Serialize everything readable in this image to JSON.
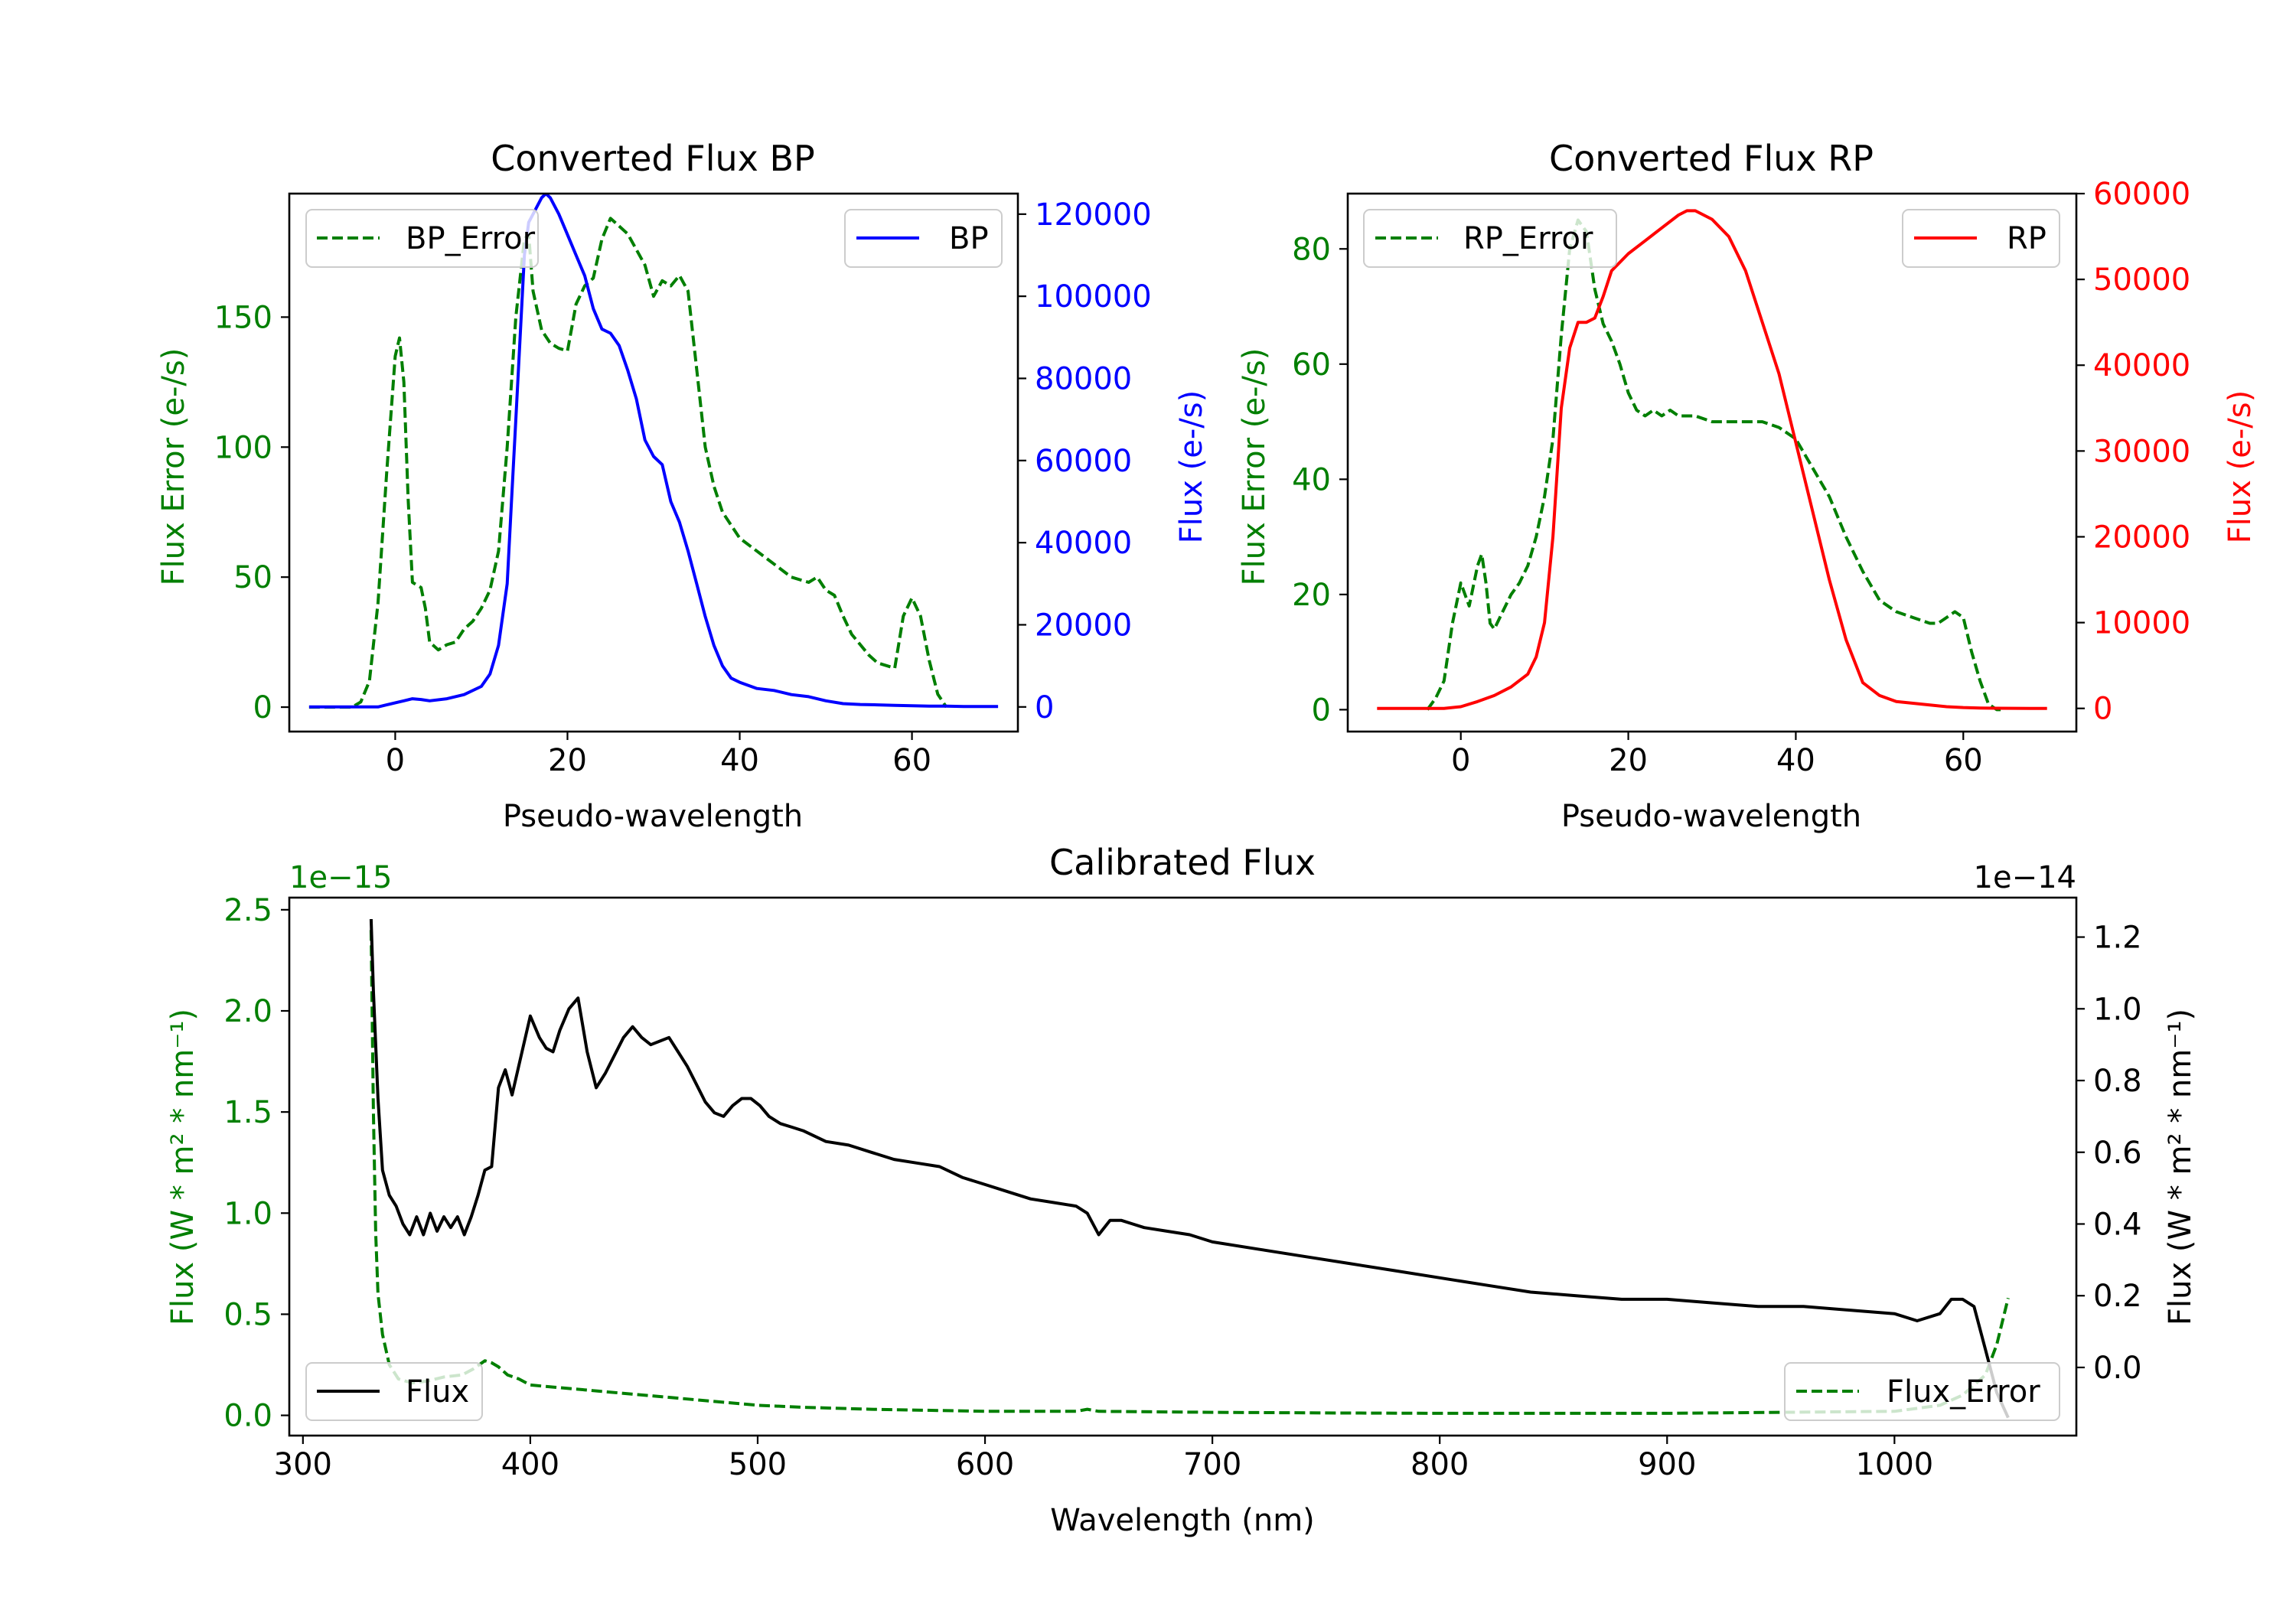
{
  "colors": {
    "green": "#007f00",
    "blue": "#0000ff",
    "red": "#ff0000",
    "black": "#000000"
  },
  "chart_data": [
    {
      "id": "bp",
      "type": "line",
      "title": "Converted Flux BP",
      "xlabel": "Pseudo-wavelength",
      "xlim": [
        -12.3,
        72.3
      ],
      "xticks": [
        0,
        20,
        40,
        60
      ],
      "xtick_labels": [
        "0",
        "20",
        "40",
        "60"
      ],
      "left_axis": {
        "label": "Flux Error (e-/s)",
        "color": "#007f00",
        "ylim": [
          -9.4,
          197.5
        ],
        "ticks": [
          0,
          50,
          100,
          150
        ],
        "tick_labels": [
          "0",
          "50",
          "100",
          "150"
        ]
      },
      "right_axis": {
        "label": "Flux (e-/s)",
        "color": "#0000ff",
        "ylim": [
          -6000,
          125000
        ],
        "ticks": [
          0,
          20000,
          40000,
          60000,
          80000,
          100000,
          120000
        ],
        "tick_labels": [
          "0",
          "20000",
          "40000",
          "60000",
          "80000",
          "100000",
          "120000"
        ]
      },
      "legend_left": {
        "label": "BP_Error",
        "position": "upper left"
      },
      "legend_right": {
        "label": "BP",
        "position": "upper right"
      },
      "series": [
        {
          "name": "BP_Error",
          "axis": "left",
          "style": "dashed",
          "color": "#007f00",
          "x": [
            -10,
            -5,
            -4,
            -3,
            -2,
            -1,
            0,
            0.5,
            1,
            1.5,
            2,
            3,
            3.5,
            4,
            5,
            6,
            7,
            8,
            9,
            10,
            11,
            12,
            13,
            14,
            15,
            15.5,
            16,
            17,
            18,
            19,
            20,
            21,
            22,
            23,
            24,
            25,
            26,
            27,
            28,
            29,
            30,
            31,
            32,
            33,
            34,
            35,
            36,
            37,
            38,
            40,
            42,
            44,
            46,
            48,
            49,
            50,
            51,
            52,
            53,
            54,
            55,
            56,
            57,
            58,
            59,
            60,
            61,
            62,
            63,
            64
          ],
          "y": [
            0,
            0,
            2,
            10,
            40,
            90,
            135,
            142,
            125,
            80,
            48,
            46,
            38,
            25,
            22,
            24,
            25,
            30,
            33,
            38,
            45,
            60,
            100,
            150,
            180,
            182,
            160,
            145,
            140,
            138,
            137,
            155,
            162,
            165,
            180,
            188,
            185,
            182,
            176,
            170,
            158,
            164,
            162,
            166,
            160,
            130,
            100,
            85,
            75,
            65,
            60,
            55,
            50,
            48,
            50,
            45,
            43,
            35,
            28,
            24,
            20,
            17,
            16,
            15,
            35,
            42,
            35,
            18,
            5,
            0
          ]
        },
        {
          "name": "BP",
          "axis": "right",
          "style": "solid",
          "color": "#0000ff",
          "x": [
            -10,
            -2,
            -1,
            0,
            1,
            2,
            3,
            4,
            6,
            8,
            10,
            11,
            12,
            13,
            13.5,
            14,
            14.5,
            15,
            15.5,
            16,
            17,
            17.5,
            18,
            19,
            20,
            21,
            22,
            23,
            24,
            25,
            26,
            27,
            28,
            29,
            30,
            31,
            32,
            33,
            34,
            35,
            36,
            37,
            38,
            39,
            40,
            42,
            44,
            46,
            48,
            50,
            52,
            54,
            56,
            58,
            60,
            62,
            64,
            66,
            68,
            70
          ],
          "y": [
            0,
            0,
            500,
            1000,
            1500,
            2000,
            1800,
            1500,
            2000,
            3000,
            5000,
            8000,
            15000,
            30000,
            50000,
            70000,
            90000,
            110000,
            118000,
            120000,
            124000,
            125000,
            124000,
            120000,
            115000,
            110000,
            105000,
            97000,
            92000,
            91000,
            88000,
            82000,
            75000,
            65000,
            61000,
            59000,
            50000,
            45000,
            38000,
            30000,
            22000,
            15000,
            10000,
            7000,
            6000,
            4500,
            4000,
            3000,
            2500,
            1500,
            800,
            600,
            500,
            400,
            300,
            200,
            200,
            100,
            100,
            100
          ]
        }
      ]
    },
    {
      "id": "rp",
      "type": "line",
      "title": "Converted Flux RP",
      "xlabel": "Pseudo-wavelength",
      "xlim": [
        -13.5,
        73.5
      ],
      "xticks": [
        0,
        20,
        40,
        60
      ],
      "xtick_labels": [
        "0",
        "20",
        "40",
        "60"
      ],
      "left_axis": {
        "label": "Flux Error (e-/s)",
        "color": "#007f00",
        "ylim": [
          -3.8,
          89.6
        ],
        "ticks": [
          0,
          20,
          40,
          60,
          80
        ],
        "tick_labels": [
          "0",
          "20",
          "40",
          "60",
          "80"
        ]
      },
      "right_axis": {
        "label": "Flux (e-/s)",
        "color": "#ff0000",
        "ylim": [
          -2700,
          60000
        ],
        "ticks": [
          0,
          10000,
          20000,
          30000,
          40000,
          50000,
          60000
        ],
        "tick_labels": [
          "0",
          "10000",
          "20000",
          "30000",
          "40000",
          "50000",
          "60000"
        ]
      },
      "legend_left": {
        "label": "RP_Error",
        "position": "upper left"
      },
      "legend_right": {
        "label": "RP",
        "position": "upper right"
      },
      "series": [
        {
          "name": "RP_Error",
          "axis": "left",
          "style": "dashed",
          "color": "#007f00",
          "x": [
            -4,
            -3,
            -2,
            -1,
            0,
            1,
            2,
            2.5,
            3,
            3.5,
            4,
            5,
            6,
            7,
            8,
            9,
            10,
            11,
            12,
            13,
            14,
            15,
            16,
            17,
            18,
            19,
            20,
            21,
            22,
            23,
            24,
            25,
            26,
            28,
            30,
            32,
            34,
            36,
            38,
            40,
            42,
            44,
            46,
            48,
            50,
            52,
            54,
            56,
            57,
            58,
            59,
            60,
            61,
            62,
            63,
            64,
            65
          ],
          "y": [
            0,
            2,
            5,
            15,
            22,
            18,
            25,
            27,
            22,
            15,
            14,
            17,
            20,
            22,
            25,
            30,
            37,
            47,
            65,
            80,
            85,
            83,
            73,
            67,
            64,
            60,
            55,
            52,
            51,
            52,
            51,
            52,
            51,
            51,
            50,
            50,
            50,
            50,
            49,
            47,
            42,
            37,
            30,
            24,
            19,
            17,
            16,
            15,
            15,
            16,
            17,
            16,
            10,
            5,
            1,
            0,
            0
          ]
        },
        {
          "name": "RP",
          "axis": "right",
          "style": "solid",
          "color": "#ff0000",
          "x": [
            -10,
            -2,
            0,
            2,
            4,
            6,
            8,
            9,
            10,
            11,
            12,
            13,
            14,
            15,
            16,
            17,
            18,
            20,
            22,
            24,
            26,
            27,
            28,
            29,
            30,
            32,
            34,
            36,
            38,
            40,
            42,
            44,
            46,
            48,
            50,
            52,
            54,
            56,
            58,
            60,
            62,
            64,
            66,
            68,
            70
          ],
          "y": [
            0,
            0,
            200,
            800,
            1500,
            2500,
            4000,
            6000,
            10000,
            20000,
            35000,
            42000,
            45000,
            45000,
            45500,
            48000,
            51000,
            53000,
            54500,
            56000,
            57500,
            58000,
            58000,
            57500,
            57000,
            55000,
            51000,
            45000,
            39000,
            31000,
            23000,
            15000,
            8000,
            3000,
            1500,
            800,
            600,
            400,
            200,
            100,
            50,
            20,
            10,
            0,
            0
          ]
        }
      ]
    },
    {
      "id": "calibrated",
      "type": "line",
      "title": "Calibrated Flux",
      "xlabel": "Wavelength (nm)",
      "xlim": [
        294,
        1080
      ],
      "xticks": [
        300,
        400,
        500,
        600,
        700,
        800,
        900,
        1000
      ],
      "xtick_labels": [
        "300",
        "400",
        "500",
        "600",
        "700",
        "800",
        "900",
        "1000"
      ],
      "left_axis": {
        "label": "Flux (W * m² * nm⁻¹)",
        "color": "#007f00",
        "offset_text": "1e−15",
        "ylim": [
          -0.1,
          2.56
        ],
        "ticks": [
          0.0,
          0.5,
          1.0,
          1.5,
          2.0,
          2.5
        ],
        "tick_labels": [
          "0.0",
          "0.5",
          "1.0",
          "1.5",
          "2.0",
          "2.5"
        ]
      },
      "right_axis": {
        "label": "Flux (W * m² * nm⁻¹)",
        "color": "#000000",
        "offset_text": "1e−14",
        "ylim": [
          -0.19,
          1.31
        ],
        "ticks": [
          0.0,
          0.2,
          0.4,
          0.6,
          0.8,
          1.0,
          1.2
        ],
        "tick_labels": [
          "0.0",
          "0.2",
          "0.4",
          "0.6",
          "0.8",
          "1.0",
          "1.2"
        ]
      },
      "legend_left": {
        "label": "Flux",
        "position": "lower left"
      },
      "legend_right": {
        "label": "Flux_Error",
        "position": "lower right"
      },
      "series": [
        {
          "name": "Flux_Error",
          "axis": "left",
          "style": "dashed",
          "color": "#007f00",
          "x": [
            330,
            331,
            332,
            333,
            335,
            338,
            342,
            348,
            355,
            362,
            370,
            375,
            380,
            383,
            386,
            390,
            395,
            400,
            410,
            420,
            430,
            440,
            460,
            480,
            500,
            520,
            550,
            600,
            640,
            645,
            650,
            700,
            750,
            800,
            850,
            900,
            950,
            1000,
            1020,
            1030,
            1040,
            1045,
            1050
          ],
          "y": [
            2.4,
            1.5,
            0.9,
            0.6,
            0.4,
            0.25,
            0.18,
            0.16,
            0.17,
            0.19,
            0.2,
            0.23,
            0.27,
            0.26,
            0.24,
            0.2,
            0.18,
            0.15,
            0.14,
            0.13,
            0.12,
            0.11,
            0.09,
            0.07,
            0.05,
            0.04,
            0.03,
            0.02,
            0.02,
            0.03,
            0.02,
            0.015,
            0.012,
            0.01,
            0.01,
            0.01,
            0.015,
            0.02,
            0.05,
            0.1,
            0.2,
            0.35,
            0.58
          ]
        },
        {
          "name": "Flux",
          "axis": "right",
          "style": "solid",
          "color": "#000000",
          "x": [
            330,
            331,
            333,
            335,
            338,
            341,
            344,
            347,
            350,
            353,
            356,
            359,
            362,
            365,
            368,
            371,
            374,
            377,
            380,
            383,
            386,
            389,
            392,
            396,
            400,
            404,
            407,
            410,
            413,
            417,
            421,
            425,
            429,
            433,
            437,
            441,
            445,
            449,
            453,
            457,
            461,
            465,
            469,
            473,
            477,
            481,
            485,
            489,
            493,
            497,
            501,
            505,
            510,
            515,
            520,
            530,
            540,
            550,
            560,
            570,
            580,
            590,
            600,
            610,
            620,
            630,
            640,
            645,
            650,
            655,
            660,
            665,
            670,
            680,
            690,
            700,
            720,
            740,
            760,
            780,
            800,
            820,
            840,
            860,
            880,
            900,
            920,
            940,
            960,
            980,
            1000,
            1010,
            1020,
            1025,
            1030,
            1035,
            1040,
            1045,
            1050
          ],
          "y": [
            1.25,
            1.05,
            0.75,
            0.55,
            0.48,
            0.45,
            0.4,
            0.37,
            0.42,
            0.37,
            0.43,
            0.38,
            0.42,
            0.39,
            0.42,
            0.37,
            0.42,
            0.48,
            0.55,
            0.56,
            0.78,
            0.83,
            0.76,
            0.87,
            0.98,
            0.92,
            0.89,
            0.88,
            0.94,
            1.0,
            1.03,
            0.88,
            0.78,
            0.82,
            0.87,
            0.92,
            0.95,
            0.92,
            0.9,
            0.91,
            0.92,
            0.88,
            0.84,
            0.79,
            0.74,
            0.71,
            0.7,
            0.73,
            0.75,
            0.75,
            0.73,
            0.7,
            0.68,
            0.67,
            0.66,
            0.63,
            0.62,
            0.6,
            0.58,
            0.57,
            0.56,
            0.53,
            0.51,
            0.49,
            0.47,
            0.46,
            0.45,
            0.43,
            0.37,
            0.41,
            0.41,
            0.4,
            0.39,
            0.38,
            0.37,
            0.35,
            0.33,
            0.31,
            0.29,
            0.27,
            0.25,
            0.23,
            0.21,
            0.2,
            0.19,
            0.19,
            0.18,
            0.17,
            0.17,
            0.16,
            0.15,
            0.13,
            0.15,
            0.19,
            0.19,
            0.17,
            0.05,
            -0.07,
            -0.14
          ]
        }
      ]
    }
  ]
}
